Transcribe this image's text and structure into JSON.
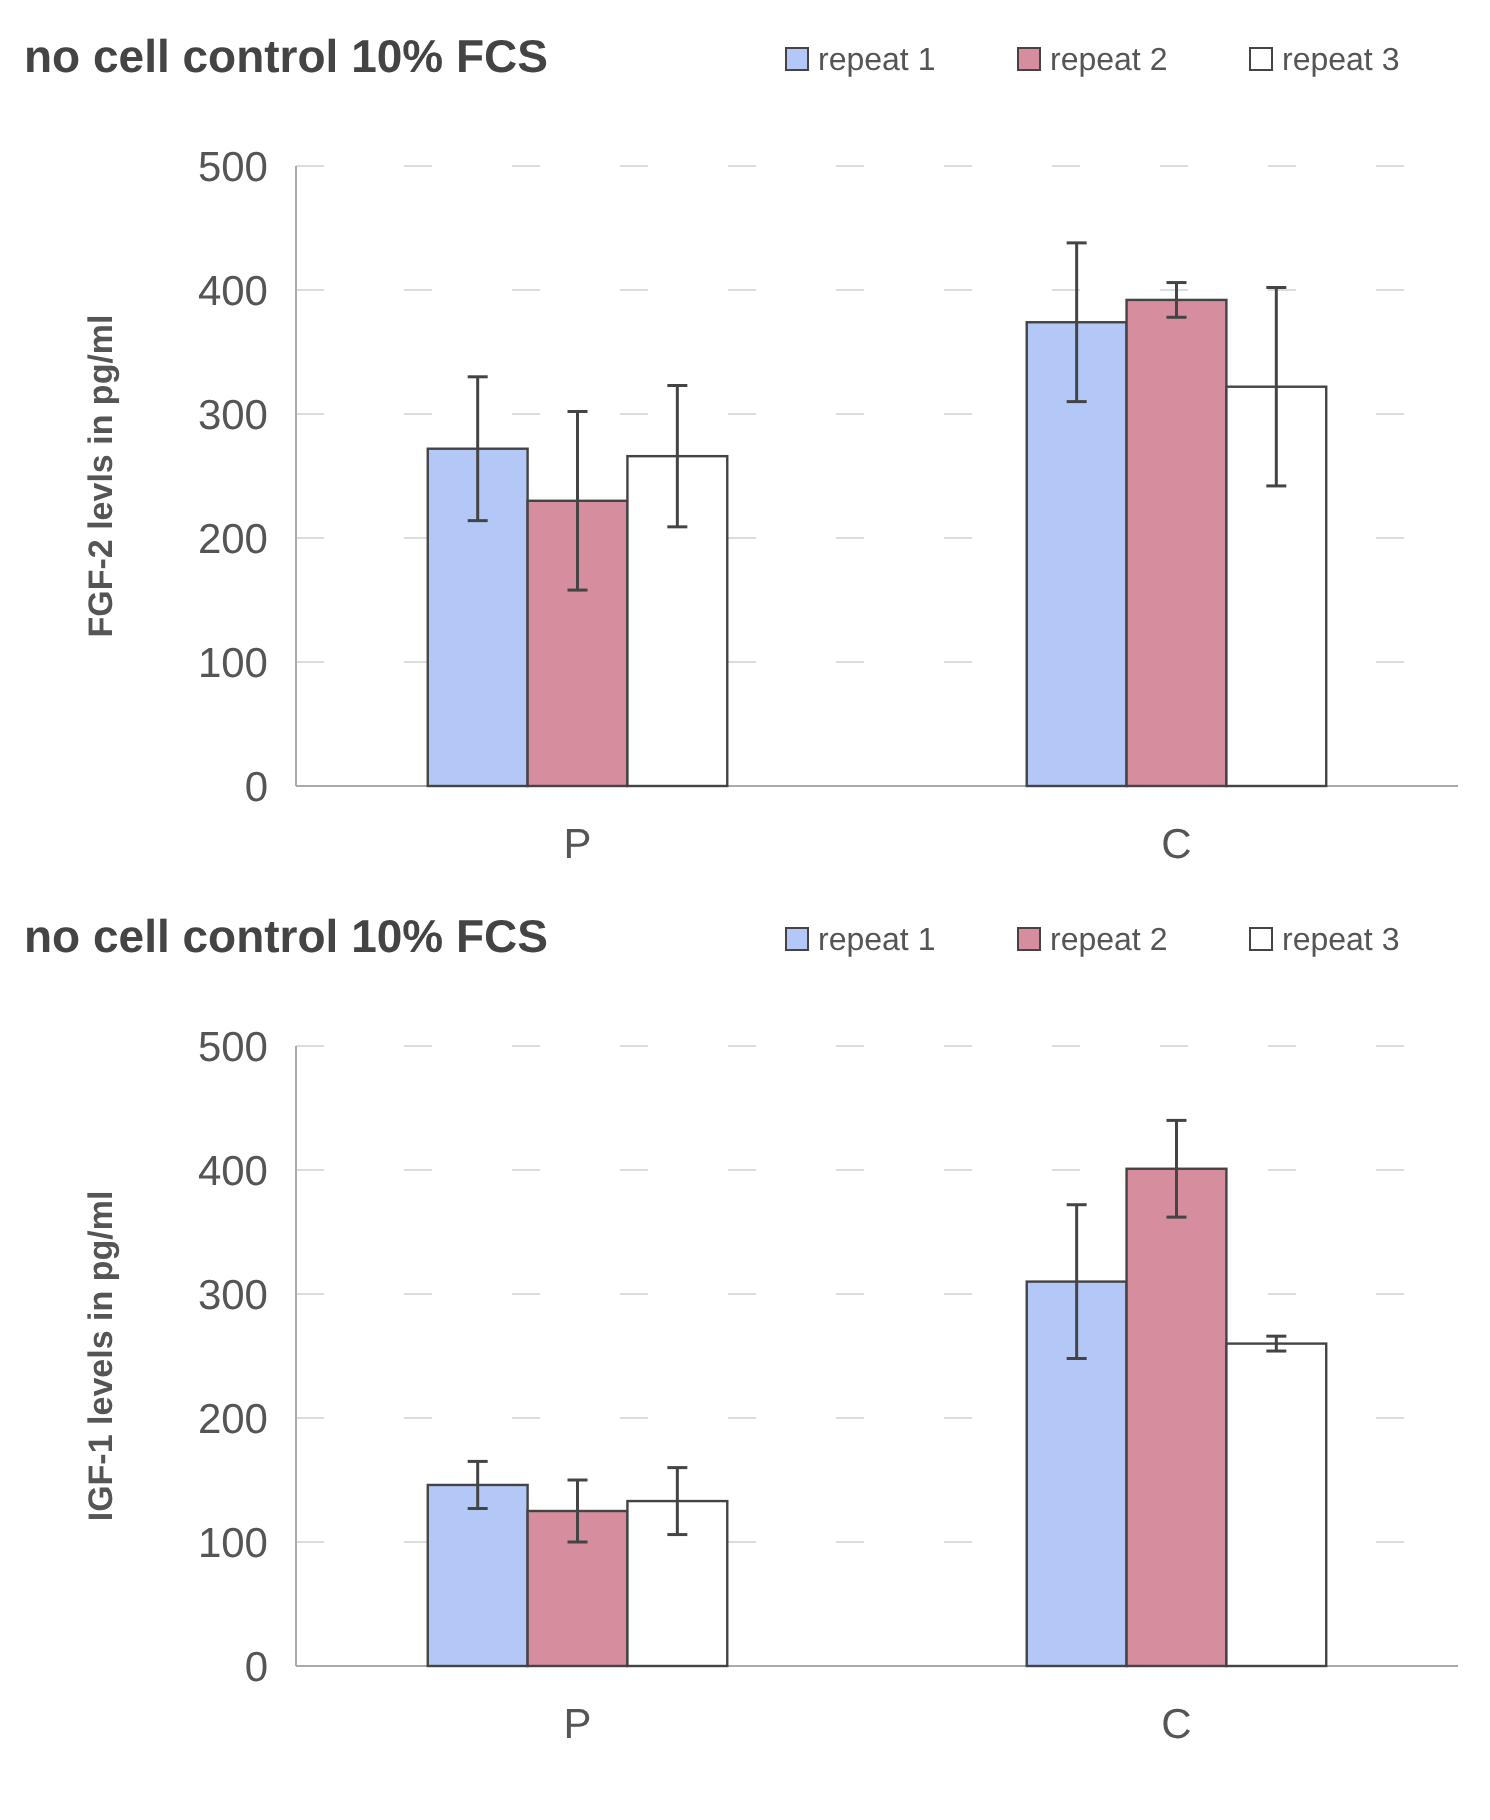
{
  "chart_data": [
    {
      "type": "bar",
      "title": "no cell control 10%  FCS",
      "ylabel": "FGF-2 levls in pg/ml",
      "categories": [
        "P",
        "C"
      ],
      "ylim": [
        0,
        500
      ],
      "yticks": [
        0,
        100,
        200,
        300,
        400,
        500
      ],
      "grid": "y",
      "legend": "top right",
      "series": [
        {
          "name": "repeat 1",
          "color": "#b4c8f8",
          "values": [
            272,
            374
          ],
          "errors": [
            58,
            64
          ]
        },
        {
          "name": "repeat 2",
          "color": "#d68d9e",
          "values": [
            230,
            392
          ],
          "errors": [
            72,
            14
          ]
        },
        {
          "name": "repeat 3",
          "color": "#ffffff",
          "values": [
            266,
            322
          ],
          "errors": [
            57,
            80
          ]
        }
      ]
    },
    {
      "type": "bar",
      "title": "no cell control 10%  FCS",
      "ylabel": "IGF-1 levels in pg/ml",
      "categories": [
        "P",
        "C"
      ],
      "ylim": [
        0,
        500
      ],
      "yticks": [
        0,
        100,
        200,
        300,
        400,
        500
      ],
      "grid": "y",
      "legend": "top right",
      "series": [
        {
          "name": "repeat 1",
          "color": "#b4c8f8",
          "values": [
            146,
            310
          ],
          "errors": [
            19,
            62
          ]
        },
        {
          "name": "repeat 2",
          "color": "#d68d9e",
          "values": [
            125,
            401
          ],
          "errors": [
            25,
            39
          ]
        },
        {
          "name": "repeat 3",
          "color": "#ffffff",
          "values": [
            133,
            260
          ],
          "errors": [
            27,
            6
          ]
        }
      ]
    }
  ]
}
